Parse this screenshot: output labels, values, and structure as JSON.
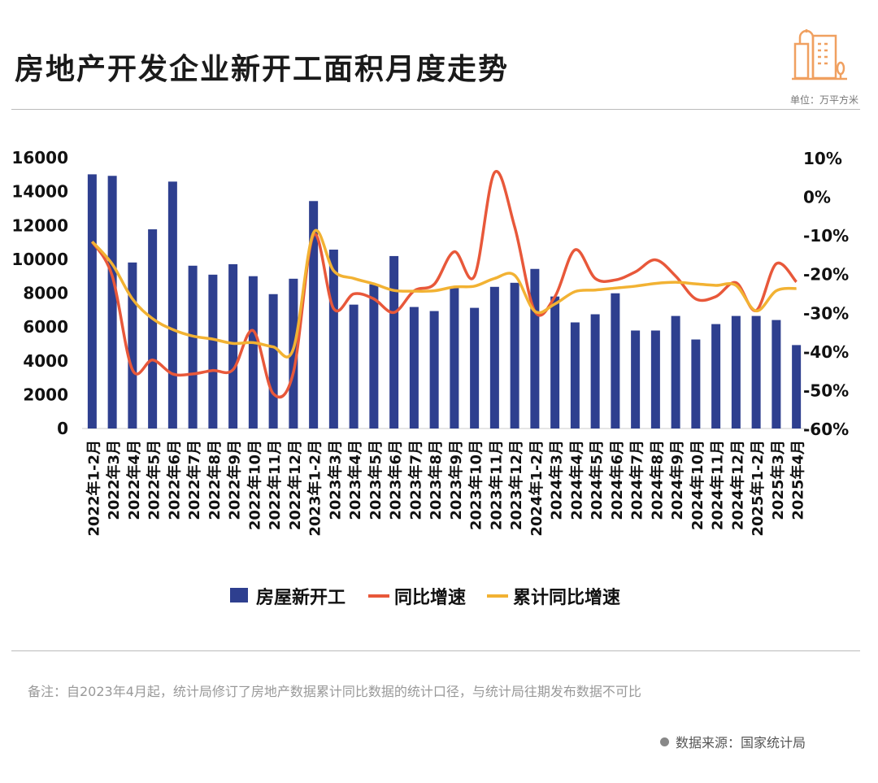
{
  "header": {
    "title": "房地产开发企业新开工面积月度走势",
    "unit": "单位：万平方米",
    "icon": "city-buildings-icon"
  },
  "footer": {
    "note": "备注：自2023年4月起，统计局修订了房地产数据累计同比数据的统计口径，与统计局往期发布数据不可比",
    "source": "数据来源：国家统计局"
  },
  "chart_data": {
    "type": "bar+line",
    "categories": [
      "2022年1-2月",
      "2022年3月",
      "2022年4月",
      "2022年5月",
      "2022年6月",
      "2022年7月",
      "2022年8月",
      "2022年9月",
      "2022年10月",
      "2022年11月",
      "2022年12月",
      "2023年1-2月",
      "2023年3月",
      "2023年4月",
      "2023年5月",
      "2023年6月",
      "2023年7月",
      "2023年8月",
      "2023年9月",
      "2023年10月",
      "2023年11月",
      "2023年12月",
      "2024年1-2月",
      "2024年3月",
      "2024年4月",
      "2024年5月",
      "2024年6月",
      "2024年7月",
      "2024年8月",
      "2024年9月",
      "2024年10月",
      "2024年11月",
      "2024年12月",
      "2025年1-2月",
      "2025年3月",
      "2025年4月"
    ],
    "left_axis": {
      "ylim": [
        0,
        16000
      ],
      "ticks": [
        "0",
        "2000",
        "4000",
        "6000",
        "8000",
        "10000",
        "12000",
        "14000",
        "16000"
      ]
    },
    "right_axis": {
      "ylim": [
        -60,
        10
      ],
      "ticks": [
        "-60%",
        "-50%",
        "-40%",
        "-30%",
        "-20%",
        "-10%",
        "0%",
        "10%"
      ]
    },
    "grid": false,
    "legend_position": "bottom",
    "series": [
      {
        "name": "房屋新开工",
        "type": "bar",
        "axis": "left",
        "color": "#2e3f8f",
        "values": [
          15020,
          14930,
          9810,
          11770,
          14590,
          9620,
          9090,
          9710,
          9000,
          7940,
          8850,
          13440,
          10570,
          7320,
          8520,
          10190,
          7180,
          6940,
          8370,
          7130,
          8370,
          8610,
          9430,
          7800,
          6270,
          6750,
          7990,
          5790,
          5790,
          6650,
          5260,
          6170,
          6650,
          6650,
          6410,
          4930
        ]
      },
      {
        "name": "同比增速",
        "type": "line",
        "axis": "right",
        "color": "#e8583a",
        "values": [
          -11.7,
          -20.6,
          -44.8,
          -42.3,
          -45.9,
          -45.9,
          -45.0,
          -44.8,
          -34.7,
          -51.0,
          -45.5,
          -10.0,
          -29.0,
          -25.2,
          -26.5,
          -30.0,
          -24.4,
          -22.7,
          -14.3,
          -20.6,
          6.2,
          -7.9,
          -29.7,
          -25.9,
          -13.8,
          -21.2,
          -21.6,
          -19.5,
          -16.4,
          -20.6,
          -26.5,
          -25.9,
          -22.3,
          -29.5,
          -17.4,
          -22.1
        ]
      },
      {
        "name": "累计同比增速",
        "type": "line",
        "axis": "right",
        "color": "#f2b233",
        "values": [
          -11.7,
          -17.5,
          -26.5,
          -31.6,
          -34.4,
          -36.1,
          -36.9,
          -38.0,
          -37.8,
          -38.9,
          -39.4,
          -9.4,
          -19.2,
          -21.2,
          -22.6,
          -24.3,
          -24.5,
          -24.4,
          -23.4,
          -23.2,
          -21.2,
          -20.4,
          -29.7,
          -27.8,
          -24.6,
          -24.2,
          -23.7,
          -23.2,
          -22.5,
          -22.2,
          -22.6,
          -23.0,
          -23.0,
          -29.6,
          -24.4,
          -23.8
        ]
      }
    ]
  }
}
